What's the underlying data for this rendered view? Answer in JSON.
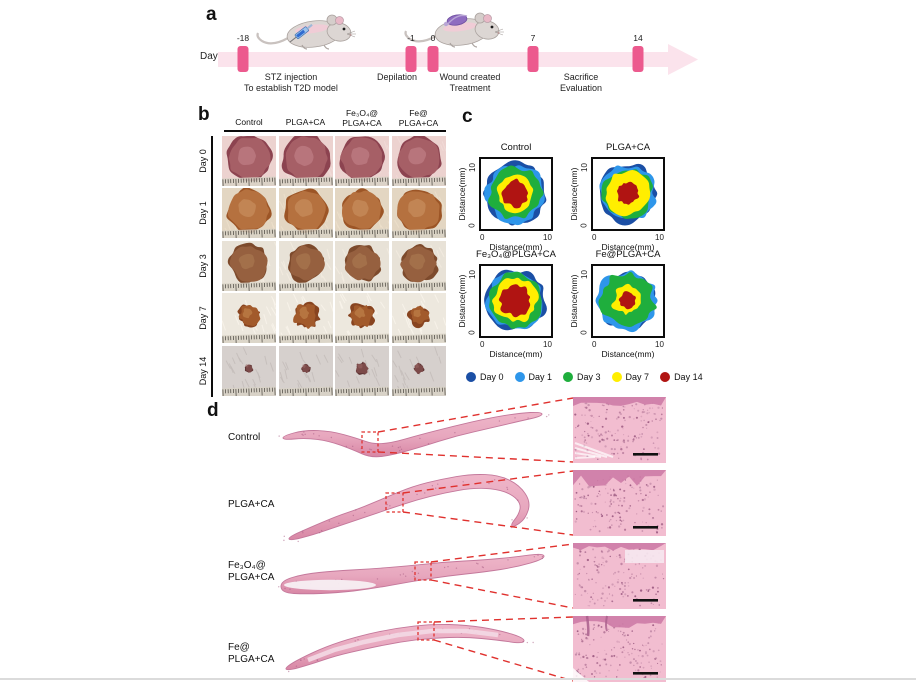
{
  "panel_a": {
    "label": "a",
    "axis_label": "Day",
    "timepoints": [
      "-18",
      "-1",
      "0",
      "7",
      "14"
    ],
    "events": [
      {
        "lines": [
          "STZ  injection",
          "To establish T2D model"
        ]
      },
      {
        "lines": [
          "Depilation"
        ]
      },
      {
        "lines": [
          "Wound created",
          "Treatment"
        ]
      },
      {
        "lines": [
          "Sacrifice",
          "Evaluation"
        ]
      }
    ],
    "icons": [
      {
        "name": "mouse-with-syringe-icon"
      },
      {
        "name": "mouse-with-dressing-icon"
      }
    ],
    "colors": {
      "band": "#fbe3ec",
      "marker": "#ec5a8e"
    }
  },
  "panel_b": {
    "label": "b",
    "column_headers": [
      [
        "Control"
      ],
      [
        "PLGA+CA"
      ],
      [
        "Fe₃O₄@",
        "PLGA+CA"
      ],
      [
        "Fe@",
        "PLGA+CA"
      ]
    ],
    "row_labels": [
      "Day 0",
      "Day 1",
      "Day 3",
      "Day 7",
      "Day 14"
    ],
    "photo_style": [
      {
        "skin": "#ecd2cf",
        "fur": "#f1dcd9",
        "wound": "#a65f66",
        "edge": "#8c4350",
        "shine": "#c98b92"
      },
      {
        "skin": "#e3d6c2",
        "fur": "#eee1cc",
        "wound": "#b5713f",
        "edge": "#9c5526",
        "shine": "#d09a6a"
      },
      {
        "skin": "#e8e2d7",
        "fur": "#f4ede1",
        "wound": "#96603f",
        "edge": "#7d4a2c",
        "shine": "#b08056"
      },
      {
        "skin": "#ede8de",
        "fur": "#faf5ec",
        "wound": "#a25a2b",
        "edge": "#884420",
        "shine": "#c98f55"
      },
      {
        "skin": "#d6d0cd",
        "fur": "#c3bcb9",
        "wound": "#7c4a49",
        "edge": "#5e3434",
        "shine": "#9c6a68"
      }
    ]
  },
  "panel_c": {
    "label": "c",
    "axis": {
      "xlabel": "Distance(mm)",
      "ylabel": "Distance(mm)",
      "tick_low": "0",
      "tick_high": "10"
    },
    "plots": [
      {
        "title": "Control",
        "radius_mm": [
          4.8,
          4.5,
          4.1,
          2.8,
          2.1
        ]
      },
      {
        "title": "PLGA+CA",
        "radius_mm": [
          4.6,
          4.3,
          3.9,
          3.4,
          1.7
        ]
      },
      {
        "title": "Fe₃O₄@PLGA+CA",
        "radius_mm": [
          4.7,
          4.4,
          4.2,
          3.4,
          2.4
        ]
      },
      {
        "title": "Fe@PLGA+CA",
        "radius_mm": [
          4.4,
          4.6,
          4.3,
          2.2,
          1.3
        ]
      }
    ],
    "legend": [
      {
        "label": "Day 0",
        "color": "#1b4fa5"
      },
      {
        "label": "Day 1",
        "color": "#2e96ea"
      },
      {
        "label": "Day 3",
        "color": "#1fae3d"
      },
      {
        "label": "Day 7",
        "color": "#ffee00"
      },
      {
        "label": "Day 14",
        "color": "#b01412"
      }
    ]
  },
  "panel_d": {
    "label": "d",
    "rows": [
      {
        "label_lines": [
          "Control"
        ]
      },
      {
        "label_lines": [
          "PLGA+CA"
        ]
      },
      {
        "label_lines": [
          "Fe₃O₄@",
          "PLGA+CA"
        ]
      },
      {
        "label_lines": [
          "Fe@",
          "PLGA+CA"
        ]
      }
    ],
    "annotation_color": "#e0312e",
    "stain_color": "#e7a7be"
  },
  "chart_data": [
    {
      "type": "contour",
      "title": "Control",
      "xlabel": "Distance(mm)",
      "ylabel": "Distance(mm)",
      "xlim": [
        0,
        10
      ],
      "ylim": [
        0,
        10
      ],
      "legend_position": "below",
      "series": [
        {
          "name": "Day 0",
          "approx_wound_radius_mm": 4.8
        },
        {
          "name": "Day 1",
          "approx_wound_radius_mm": 4.5
        },
        {
          "name": "Day 3",
          "approx_wound_radius_mm": 4.1
        },
        {
          "name": "Day 7",
          "approx_wound_radius_mm": 2.8
        },
        {
          "name": "Day 14",
          "approx_wound_radius_mm": 2.1
        }
      ]
    },
    {
      "type": "contour",
      "title": "PLGA+CA",
      "xlabel": "Distance(mm)",
      "ylabel": "Distance(mm)",
      "xlim": [
        0,
        10
      ],
      "ylim": [
        0,
        10
      ],
      "legend_position": "below",
      "series": [
        {
          "name": "Day 0",
          "approx_wound_radius_mm": 4.6
        },
        {
          "name": "Day 1",
          "approx_wound_radius_mm": 4.3
        },
        {
          "name": "Day 3",
          "approx_wound_radius_mm": 3.9
        },
        {
          "name": "Day 7",
          "approx_wound_radius_mm": 3.4
        },
        {
          "name": "Day 14",
          "approx_wound_radius_mm": 1.7
        }
      ]
    },
    {
      "type": "contour",
      "title": "Fe₃O₄@PLGA+CA",
      "xlabel": "Distance(mm)",
      "ylabel": "Distance(mm)",
      "xlim": [
        0,
        10
      ],
      "ylim": [
        0,
        10
      ],
      "legend_position": "below",
      "series": [
        {
          "name": "Day 0",
          "approx_wound_radius_mm": 4.7
        },
        {
          "name": "Day 1",
          "approx_wound_radius_mm": 4.4
        },
        {
          "name": "Day 3",
          "approx_wound_radius_mm": 4.2
        },
        {
          "name": "Day 7",
          "approx_wound_radius_mm": 3.4
        },
        {
          "name": "Day 14",
          "approx_wound_radius_mm": 2.4
        }
      ]
    },
    {
      "type": "contour",
      "title": "Fe@PLGA+CA",
      "xlabel": "Distance(mm)",
      "ylabel": "Distance(mm)",
      "xlim": [
        0,
        10
      ],
      "ylim": [
        0,
        10
      ],
      "legend_position": "below",
      "series": [
        {
          "name": "Day 0",
          "approx_wound_radius_mm": 4.4
        },
        {
          "name": "Day 1",
          "approx_wound_radius_mm": 4.6
        },
        {
          "name": "Day 3",
          "approx_wound_radius_mm": 4.3
        },
        {
          "name": "Day 7",
          "approx_wound_radius_mm": 2.2
        },
        {
          "name": "Day 14",
          "approx_wound_radius_mm": 1.3
        }
      ]
    }
  ]
}
